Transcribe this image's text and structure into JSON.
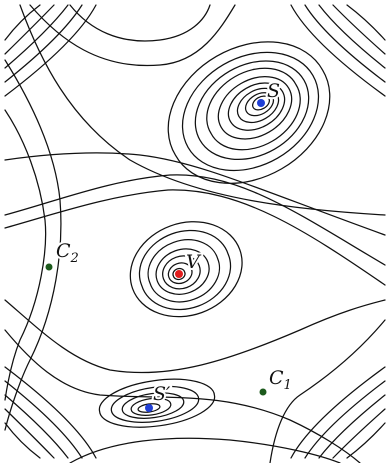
{
  "diagram": {
    "colors": {
      "curves": "#111111",
      "point_S": "#1f3fd6",
      "point_S_prime": "#1f3fd6",
      "point_V": "#e11b1b",
      "point_C1": "#1c5a1c",
      "point_C2": "#1c5a1c"
    },
    "points": {
      "S": {
        "label": "S"
      },
      "S_prime": {
        "label": "S′"
      },
      "V": {
        "label": "V"
      },
      "C1": {
        "label": "C",
        "subscript": "1"
      },
      "C2": {
        "label": "C",
        "subscript": "2"
      }
    }
  }
}
